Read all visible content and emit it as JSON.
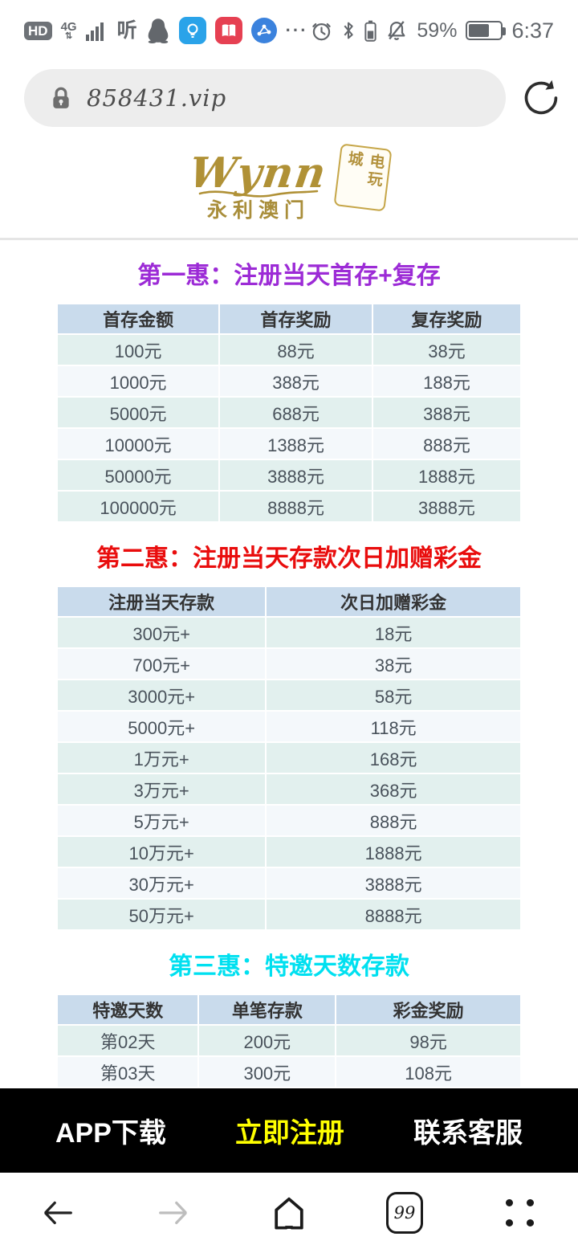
{
  "status_bar": {
    "hd_label": "HD",
    "network_label": "4G",
    "network_arrows": "⇅",
    "listen_label": "听",
    "more_dots": "···",
    "battery_percent": "59%",
    "time": "6:37"
  },
  "browser": {
    "url": "858431.vip"
  },
  "logo": {
    "script": "Wynn",
    "name": "永利澳门",
    "stamp": "电玩城"
  },
  "sections": [
    {
      "title": "第一惠：注册当天首存+复存",
      "title_color": "#9c2bd6",
      "columns": [
        "首存金额",
        "首存奖励",
        "复存奖励"
      ],
      "rows": [
        [
          "100元",
          "88元",
          "38元"
        ],
        [
          "1000元",
          "388元",
          "188元"
        ],
        [
          "5000元",
          "688元",
          "388元"
        ],
        [
          "10000元",
          "1388元",
          "888元"
        ],
        [
          "50000元",
          "3888元",
          "1888元"
        ],
        [
          "100000元",
          "8888元",
          "3888元"
        ]
      ]
    },
    {
      "title": "第二惠：注册当天存款次日加赠彩金",
      "title_color": "#e90d0d",
      "columns": [
        "注册当天存款",
        "次日加赠彩金"
      ],
      "rows": [
        [
          "300元+",
          "18元"
        ],
        [
          "700元+",
          "38元"
        ],
        [
          "3000元+",
          "58元"
        ],
        [
          "5000元+",
          "118元"
        ],
        [
          "1万元+",
          "168元"
        ],
        [
          "3万元+",
          "368元"
        ],
        [
          "5万元+",
          "888元"
        ],
        [
          "10万元+",
          "1888元"
        ],
        [
          "30万元+",
          "3888元"
        ],
        [
          "50万元+",
          "8888元"
        ]
      ]
    },
    {
      "title": "第三惠：特邀天数存款",
      "title_color": "#00e0f0",
      "columns": [
        "特邀天数",
        "单笔存款",
        "彩金奖励"
      ],
      "rows": [
        [
          "第02天",
          "200元",
          "98元"
        ],
        [
          "第03天",
          "300元",
          "108元"
        ]
      ]
    }
  ],
  "bottom_bar": {
    "items": [
      {
        "label": "APP下载",
        "color": "#ffffff"
      },
      {
        "label": "立即注册",
        "color": "#ffff00"
      },
      {
        "label": "联系客服",
        "color": "#ffffff"
      }
    ]
  },
  "nav_bar": {
    "tab_count": "99"
  }
}
